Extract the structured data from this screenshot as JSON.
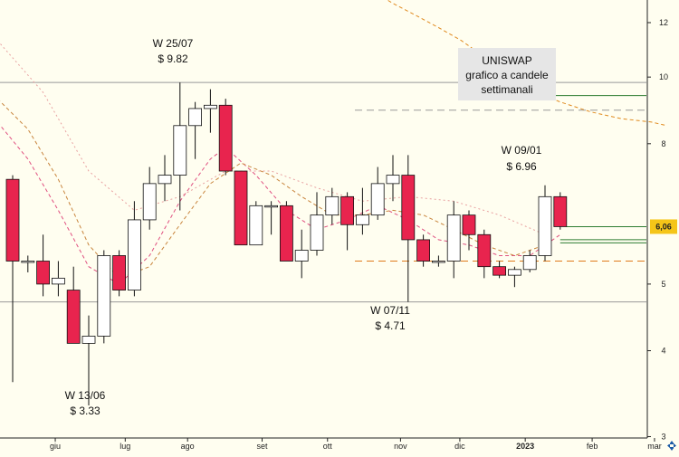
{
  "colors": {
    "background": "#fffef0",
    "bull_body": "#ffffff",
    "bear_body": "#e8244e",
    "wick": "#111111",
    "sma_fast": "#e05080",
    "sma_mid": "#c8843c",
    "sma_slow": "#e8a0a0",
    "long_ma": "#e08a1e",
    "support_orange": "#e07a1c",
    "support_green": "#2e7d32",
    "resistance_gray": "#999999",
    "price_badge": "#f5c518",
    "title_box": "#e6e6e6"
  },
  "title_box": {
    "lines": [
      "UNISWAP",
      "grafico a candele",
      "settimanali"
    ]
  },
  "annotations": [
    {
      "line1": "W 25/07",
      "line2": "$ 9.82"
    },
    {
      "line1": "W 09/01",
      "line2": "$ 6.96"
    },
    {
      "line1": "W 07/11",
      "line2": "$ 4.71"
    },
    {
      "line1": "W 13/06",
      "line2": "$ 3.33"
    }
  ],
  "last_price_label": "6,06",
  "chart_data": {
    "type": "candlestick",
    "title": "UNISWAP grafico a candele settimanali",
    "y_scale": "log",
    "ylim": [
      3,
      13
    ],
    "y_ticks": [
      {
        "value": 3,
        "label": "3"
      },
      {
        "value": 4,
        "label": "4"
      },
      {
        "value": 5,
        "label": "5"
      },
      {
        "value": 6.06,
        "label": "6,06"
      },
      {
        "value": 8,
        "label": "8"
      },
      {
        "value": 10,
        "label": "10"
      },
      {
        "value": 12,
        "label": "12"
      }
    ],
    "x_ticks": [
      {
        "label": "giu",
        "week": 2.8
      },
      {
        "label": "lug",
        "week": 7.4
      },
      {
        "label": "ago",
        "week": 11.5
      },
      {
        "label": "set",
        "week": 16.4
      },
      {
        "label": "ott",
        "week": 20.7
      },
      {
        "label": "nov",
        "week": 25.5
      },
      {
        "label": "dic",
        "week": 29.4
      },
      {
        "label": "2023",
        "week": 33.7,
        "bold": true
      },
      {
        "label": "feb",
        "week": 38.1
      },
      {
        "label": "mar",
        "week": 42.2
      }
    ],
    "candles": [
      {
        "week": 0.0,
        "open": 7.1,
        "high": 7.2,
        "low": 3.6,
        "close": 5.4
      },
      {
        "week": 1.0,
        "open": 5.4,
        "high": 5.5,
        "low": 5.2,
        "close": 5.4
      },
      {
        "week": 2.0,
        "open": 5.4,
        "high": 5.9,
        "low": 4.8,
        "close": 5.0
      },
      {
        "week": 3.0,
        "open": 5.0,
        "high": 5.4,
        "low": 4.8,
        "close": 5.1
      },
      {
        "week": 4.0,
        "open": 4.9,
        "high": 5.3,
        "low": 4.1,
        "close": 4.1
      },
      {
        "week": 5.0,
        "open": 4.1,
        "high": 4.5,
        "low": 3.33,
        "close": 4.2
      },
      {
        "week": 6.0,
        "open": 4.2,
        "high": 5.6,
        "low": 4.1,
        "close": 5.5
      },
      {
        "week": 7.0,
        "open": 5.5,
        "high": 5.6,
        "low": 4.8,
        "close": 4.9
      },
      {
        "week": 8.0,
        "open": 4.9,
        "high": 6.6,
        "low": 4.8,
        "close": 6.2
      },
      {
        "week": 9.0,
        "open": 6.2,
        "high": 7.4,
        "low": 6.0,
        "close": 7.0
      },
      {
        "week": 10.0,
        "open": 7.0,
        "high": 7.7,
        "low": 6.6,
        "close": 7.2
      },
      {
        "week": 11.0,
        "open": 7.2,
        "high": 9.82,
        "low": 6.4,
        "close": 8.5
      },
      {
        "week": 12.0,
        "open": 8.5,
        "high": 9.2,
        "low": 7.6,
        "close": 9.0
      },
      {
        "week": 13.0,
        "open": 9.0,
        "high": 9.6,
        "low": 8.3,
        "close": 9.1
      },
      {
        "week": 14.0,
        "open": 9.1,
        "high": 9.3,
        "low": 7.2,
        "close": 7.3
      },
      {
        "week": 15.0,
        "open": 7.3,
        "high": 7.3,
        "low": 5.7,
        "close": 5.7
      },
      {
        "week": 16.0,
        "open": 5.7,
        "high": 6.6,
        "low": 5.7,
        "close": 6.5
      },
      {
        "week": 17.0,
        "open": 6.5,
        "high": 6.6,
        "low": 5.9,
        "close": 6.5
      },
      {
        "week": 18.0,
        "open": 6.5,
        "high": 6.6,
        "low": 5.4,
        "close": 5.4
      },
      {
        "week": 19.0,
        "open": 5.4,
        "high": 6.0,
        "low": 5.1,
        "close": 5.6
      },
      {
        "week": 20.0,
        "open": 5.6,
        "high": 6.8,
        "low": 5.5,
        "close": 6.3
      },
      {
        "week": 21.0,
        "open": 6.3,
        "high": 6.9,
        "low": 6.1,
        "close": 6.7
      },
      {
        "week": 22.0,
        "open": 6.7,
        "high": 6.8,
        "low": 5.6,
        "close": 6.1
      },
      {
        "week": 23.0,
        "open": 6.1,
        "high": 6.9,
        "low": 5.9,
        "close": 6.3
      },
      {
        "week": 24.0,
        "open": 6.3,
        "high": 7.4,
        "low": 6.2,
        "close": 7.0
      },
      {
        "week": 25.0,
        "open": 7.0,
        "high": 7.7,
        "low": 6.6,
        "close": 7.2
      },
      {
        "week": 26.0,
        "open": 7.2,
        "high": 7.7,
        "low": 4.71,
        "close": 5.8
      },
      {
        "week": 27.0,
        "open": 5.8,
        "high": 5.9,
        "low": 5.3,
        "close": 5.4
      },
      {
        "week": 28.0,
        "open": 5.4,
        "high": 5.5,
        "low": 5.3,
        "close": 5.4
      },
      {
        "week": 29.0,
        "open": 5.4,
        "high": 6.6,
        "low": 5.1,
        "close": 6.3
      },
      {
        "week": 30.0,
        "open": 6.3,
        "high": 6.4,
        "low": 5.6,
        "close": 5.9
      },
      {
        "week": 31.0,
        "open": 5.9,
        "high": 6.0,
        "low": 5.1,
        "close": 5.3
      },
      {
        "week": 32.0,
        "open": 5.3,
        "high": 5.4,
        "low": 5.1,
        "close": 5.15
      },
      {
        "week": 33.0,
        "open": 5.15,
        "high": 5.3,
        "low": 4.95,
        "close": 5.25
      },
      {
        "week": 34.0,
        "open": 5.25,
        "high": 5.6,
        "low": 5.2,
        "close": 5.5
      },
      {
        "week": 35.0,
        "open": 5.5,
        "high": 6.96,
        "low": 5.4,
        "close": 6.7
      },
      {
        "week": 36.0,
        "open": 6.7,
        "high": 6.8,
        "low": 6.0,
        "close": 6.06
      }
    ],
    "moving_averages": [
      {
        "color_key": "sma_fast",
        "style": "dashed",
        "points": [
          [
            -1,
            8.6
          ],
          [
            1,
            7.6
          ],
          [
            3,
            6.4
          ],
          [
            5,
            5.3
          ],
          [
            7,
            5.0
          ],
          [
            9,
            5.5
          ],
          [
            11,
            6.6
          ],
          [
            13,
            7.6
          ],
          [
            14,
            7.9
          ],
          [
            16,
            7.2
          ],
          [
            18,
            6.4
          ],
          [
            20,
            6.0
          ],
          [
            22,
            6.2
          ],
          [
            24,
            6.5
          ],
          [
            26,
            6.2
          ],
          [
            28,
            5.8
          ],
          [
            30,
            5.7
          ],
          [
            32,
            5.5
          ],
          [
            34,
            5.5
          ],
          [
            36,
            5.9
          ]
        ]
      },
      {
        "color_key": "sma_mid",
        "style": "dashed",
        "points": [
          [
            -1,
            9.3
          ],
          [
            1,
            8.4
          ],
          [
            3,
            7.1
          ],
          [
            5,
            5.7
          ],
          [
            7,
            5.1
          ],
          [
            9,
            5.3
          ],
          [
            11,
            6.1
          ],
          [
            13,
            7.0
          ],
          [
            15,
            7.5
          ],
          [
            17,
            7.2
          ],
          [
            19,
            6.7
          ],
          [
            21,
            6.3
          ],
          [
            23,
            6.3
          ],
          [
            25,
            6.4
          ],
          [
            27,
            6.3
          ],
          [
            29,
            6.0
          ],
          [
            31,
            5.7
          ],
          [
            33,
            5.5
          ],
          [
            35,
            5.7
          ]
        ]
      },
      {
        "color_key": "sma_slow",
        "style": "dotted",
        "points": [
          [
            -1,
            11.3
          ],
          [
            2,
            9.5
          ],
          [
            5,
            7.3
          ],
          [
            8,
            6.4
          ],
          [
            11,
            6.7
          ],
          [
            14,
            7.3
          ],
          [
            17,
            7.3
          ],
          [
            20,
            6.9
          ],
          [
            23,
            6.6
          ],
          [
            26,
            6.7
          ],
          [
            29,
            6.6
          ],
          [
            32,
            6.3
          ],
          [
            35,
            5.9
          ]
        ]
      },
      {
        "color_key": "long_ma",
        "style": "dashed",
        "points": [
          [
            21.7,
            14.5
          ],
          [
            23.5,
            13.4
          ],
          [
            25,
            12.8
          ],
          [
            26.5,
            12.3
          ],
          [
            28,
            11.8
          ],
          [
            29.5,
            11.3
          ],
          [
            31,
            10.7
          ],
          [
            32.5,
            10.1
          ],
          [
            34,
            9.6
          ],
          [
            36,
            9.2
          ],
          [
            38,
            8.9
          ],
          [
            40,
            8.7
          ],
          [
            42,
            8.6
          ],
          [
            43,
            8.5
          ]
        ]
      }
    ],
    "horizontal_lines": [
      {
        "value": 9.82,
        "color_key": "resistance_gray",
        "style": "solid",
        "from_week": -1,
        "to_week": 43.0
      },
      {
        "value": 4.71,
        "color_key": "resistance_gray",
        "style": "solid",
        "from_week": -1,
        "to_week": 43.0
      },
      {
        "value": 8.95,
        "color_key": "resistance_gray",
        "style": "dashed",
        "from_week": 22.5,
        "to_week": 43.0
      },
      {
        "value": 5.4,
        "color_key": "support_orange",
        "style": "dashed",
        "from_week": 22.5,
        "to_week": 43.0
      },
      {
        "value": 9.4,
        "color_key": "support_green",
        "style": "solid",
        "from_week": 35.7,
        "to_week": 43.0
      },
      {
        "value": 6.06,
        "color_key": "support_green",
        "style": "solid",
        "from_week": 36.4,
        "to_week": 43.0
      },
      {
        "value": 5.8,
        "color_key": "support_green",
        "style": "solid",
        "from_week": 36.0,
        "to_week": 43.0
      },
      {
        "value": 5.74,
        "color_key": "support_green",
        "style": "solid",
        "from_week": 36.0,
        "to_week": 43.0
      }
    ]
  }
}
